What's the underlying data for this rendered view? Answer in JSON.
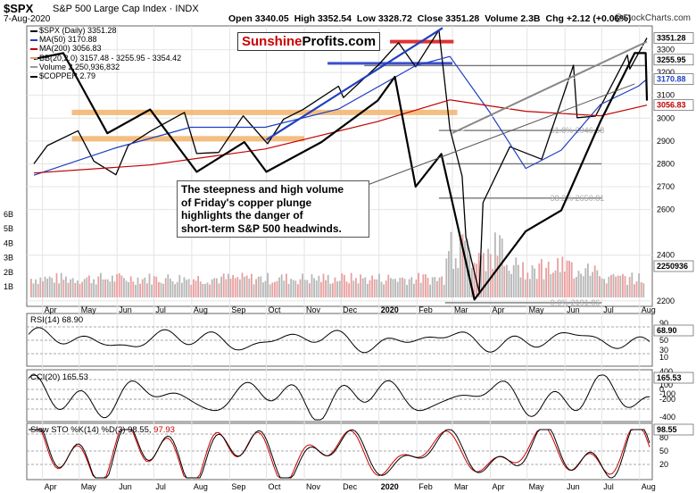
{
  "header": {
    "symbol": "$SPX",
    "name": "S&P 500 Large Cap Index",
    "exchange": "INDX",
    "date": "7-Aug-2020",
    "ohlc": {
      "open": "Open 3340.05",
      "high": "High 3352.54",
      "low": "Low 3328.72",
      "close": "Close 3351.28",
      "volume": "Volume 2.3B",
      "change": "Chg +2.12 (+0.06%)"
    },
    "credit": "@StockCharts.com"
  },
  "watermark": {
    "part1": "Sunshine",
    "part2": "Profits.com"
  },
  "legend": [
    {
      "text": "$SPX (Daily) 3351.28",
      "color": "#000000"
    },
    {
      "text": "MA(50) 3170.88",
      "color": "#1f3fbf"
    },
    {
      "text": "MA(200) 3056.83",
      "color": "#c00000"
    },
    {
      "text": "BB(20,2.0) 3157.48 - 3255.95 - 3354.42",
      "color": "#e0a060"
    },
    {
      "text": "Volume 2,250,936,832",
      "color": "#999999"
    },
    {
      "text": "$COPPER 2.79",
      "color": "#000000"
    }
  ],
  "annotation": {
    "lines": [
      "The steepness and high volume",
      "of Friday's copper plunge",
      "highlights the danger of",
      "short-term S&P 500 headwinds."
    ]
  },
  "fib_labels": [
    "38.2% 2650.81",
    "61.8% 2946.58",
    "0.0% 2191.86"
  ],
  "panels": {
    "rsi": {
      "label": "RSI(14) 68.90",
      "value": "68.90",
      "ticks": [
        "90",
        "70",
        "50",
        "30",
        "10"
      ]
    },
    "cci": {
      "label": "CCI(20) 165.53",
      "value": "165.53",
      "ticks": [
        "400",
        "200",
        "100",
        "0",
        "-100",
        "-200",
        "-400"
      ]
    },
    "sto": {
      "label_prefix": "Slow STO %K(14) %D(3) 98.55,",
      "label_d": "97.93",
      "value": "98.55",
      "ticks": [
        "80",
        "50",
        "20"
      ]
    }
  },
  "chart_data": {
    "type": "line",
    "title": "$SPX S&P 500 Large Cap Index INDX",
    "x_axis": {
      "labels": [
        "Apr",
        "May",
        "Jun",
        "Jul",
        "Aug",
        "Sep",
        "Oct",
        "Nov",
        "Dec",
        "2020",
        "Feb",
        "Mar",
        "Apr",
        "May",
        "Jun",
        "Jul",
        "Aug"
      ],
      "range": [
        "2019-03-25",
        "2020-08-07"
      ]
    },
    "price_axis": {
      "ticks": [
        2200,
        2400,
        2600,
        2700,
        2800,
        2900,
        3000,
        3100,
        3200,
        3300
      ],
      "ylim": [
        2180,
        3400
      ],
      "value_labels": {
        "close": "3351.28",
        "bb_upper": "3354.42",
        "bb_mid": "3255.95",
        "ma50": "3170.88",
        "ma200": "3056.83"
      }
    },
    "volume_axis": {
      "ticks": [
        "6B",
        "5B",
        "4B",
        "3B",
        "2B",
        "1B"
      ],
      "last": "2250936"
    },
    "series": [
      {
        "name": "$SPX",
        "color": "#000000",
        "points": [
          [
            "2019-03-25",
            2800
          ],
          [
            "2019-04-05",
            2880
          ],
          [
            "2019-04-30",
            2945
          ],
          [
            "2019-05-13",
            2812
          ],
          [
            "2019-05-31",
            2752
          ],
          [
            "2019-06-10",
            2880
          ],
          [
            "2019-06-28",
            2942
          ],
          [
            "2019-07-26",
            3025
          ],
          [
            "2019-08-05",
            2845
          ],
          [
            "2019-08-15",
            2848
          ],
          [
            "2019-08-23",
            2850
          ],
          [
            "2019-09-12",
            3010
          ],
          [
            "2019-10-02",
            2888
          ],
          [
            "2019-10-15",
            2995
          ],
          [
            "2019-10-31",
            3038
          ],
          [
            "2019-11-29",
            3140
          ],
          [
            "2019-12-03",
            3090
          ],
          [
            "2019-12-31",
            3230
          ],
          [
            "2020-01-17",
            3330
          ],
          [
            "2020-01-31",
            3225
          ],
          [
            "2020-02-19",
            3386
          ],
          [
            "2020-02-28",
            2954
          ],
          [
            "2020-03-09",
            2746
          ],
          [
            "2020-03-12",
            2480
          ],
          [
            "2020-03-23",
            2237
          ],
          [
            "2020-03-26",
            2630
          ],
          [
            "2020-04-17",
            2875
          ],
          [
            "2020-05-13",
            2820
          ],
          [
            "2020-06-08",
            3232
          ],
          [
            "2020-06-11",
            3002
          ],
          [
            "2020-06-26",
            3009
          ],
          [
            "2020-07-22",
            3276
          ],
          [
            "2020-07-24",
            3215
          ],
          [
            "2020-08-07",
            3351
          ]
        ]
      },
      {
        "name": "MA(50)",
        "color": "#1f3fbf",
        "points": [
          [
            "2019-03-25",
            2750
          ],
          [
            "2019-05-31",
            2870
          ],
          [
            "2019-07-31",
            2960
          ],
          [
            "2019-09-30",
            2960
          ],
          [
            "2019-11-29",
            3040
          ],
          [
            "2020-01-31",
            3230
          ],
          [
            "2020-02-28",
            3270
          ],
          [
            "2020-03-31",
            3030
          ],
          [
            "2020-04-30",
            2780
          ],
          [
            "2020-05-29",
            2860
          ],
          [
            "2020-06-30",
            3060
          ],
          [
            "2020-07-31",
            3140
          ],
          [
            "2020-08-07",
            3171
          ]
        ]
      },
      {
        "name": "MA(200)",
        "color": "#c00000",
        "points": [
          [
            "2019-03-25",
            2760
          ],
          [
            "2019-06-28",
            2795
          ],
          [
            "2019-09-30",
            2865
          ],
          [
            "2019-12-31",
            2985
          ],
          [
            "2020-02-28",
            3080
          ],
          [
            "2020-04-30",
            3030
          ],
          [
            "2020-06-30",
            3010
          ],
          [
            "2020-08-07",
            3057
          ]
        ]
      },
      {
        "name": "$COPPER",
        "color": "#000000",
        "points": [
          [
            "2019-03-25",
            2.93
          ],
          [
            "2019-04-18",
            2.95
          ],
          [
            "2019-05-24",
            2.68
          ],
          [
            "2019-06-28",
            2.76
          ],
          [
            "2019-08-05",
            2.55
          ],
          [
            "2019-09-13",
            2.65
          ],
          [
            "2019-10-01",
            2.55
          ],
          [
            "2019-11-15",
            2.65
          ],
          [
            "2019-12-31",
            2.79
          ],
          [
            "2020-01-14",
            2.87
          ],
          [
            "2020-01-31",
            2.5
          ],
          [
            "2020-02-21",
            2.61
          ],
          [
            "2020-03-19",
            2.12
          ],
          [
            "2020-04-30",
            2.35
          ],
          [
            "2020-05-29",
            2.42
          ],
          [
            "2020-06-30",
            2.72
          ],
          [
            "2020-07-28",
            2.95
          ],
          [
            "2020-08-06",
            2.95
          ],
          [
            "2020-08-07",
            2.79
          ]
        ]
      }
    ]
  }
}
